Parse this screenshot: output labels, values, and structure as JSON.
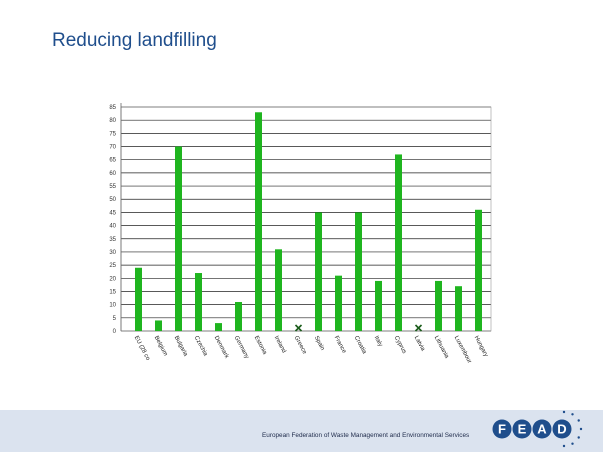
{
  "slide": {
    "title": "Reducing landfilling",
    "footer_text": "European Federation of Waste Management and Environmental Services",
    "logo_text": "FEAD"
  },
  "colors": {
    "bar": "#1fb51f",
    "marker": "#1a5c1a",
    "title": "#1f4e8c",
    "footer_band": "#dbe3ef",
    "logo_circle": "#1f4e8c"
  },
  "chart_data": {
    "type": "bar",
    "title": "",
    "xlabel": "",
    "ylabel": "",
    "ylim": [
      0,
      85
    ],
    "yticks": [
      0,
      5,
      10,
      15,
      20,
      25,
      30,
      35,
      40,
      45,
      50,
      55,
      60,
      65,
      70,
      75,
      80,
      85
    ],
    "grid": true,
    "categories": [
      "EU (28 co",
      "Belgium",
      "Bulgaria",
      "Czechia",
      "Denmark",
      "Germany",
      "Estonia",
      "Ireland",
      "Greece",
      "Spain",
      "France",
      "Croatia",
      "Italy",
      "Cyprus",
      "Latvia",
      "Lithuania",
      "Luxembour",
      "Hungary"
    ],
    "values": [
      24,
      4,
      70,
      22,
      3,
      11,
      83,
      31,
      null,
      45,
      21,
      45,
      19,
      67,
      null,
      19,
      17,
      46
    ],
    "missing_marker": "x"
  }
}
